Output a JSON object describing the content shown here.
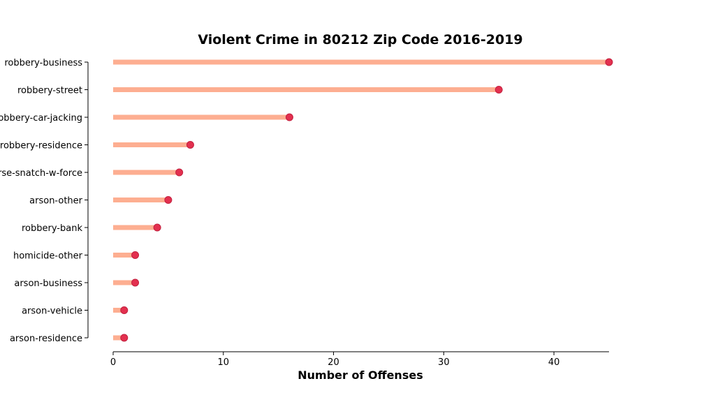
{
  "chart_data": {
    "type": "lollipop",
    "title": "Violent Crime in 80212 Zip Code 2016-2019",
    "xlabel": "Number of Offenses",
    "ylabel": "",
    "xlim": [
      0,
      45
    ],
    "xticks": [
      0,
      10,
      20,
      30,
      40
    ],
    "categories": [
      "robbery-business",
      "robbery-street",
      "robbery-car-jacking",
      "robbery-residence",
      "purse-snatch-w-force",
      "arson-other",
      "robbery-bank",
      "homicide-other",
      "arson-business",
      "arson-vehicle",
      "arson-residence"
    ],
    "values": [
      45,
      35,
      16,
      7,
      6,
      5,
      4,
      2,
      2,
      1,
      1
    ],
    "grid": false,
    "colors": {
      "stem": "#fdae91",
      "dot": "#e3304f",
      "dot_edge": "#c2203e"
    }
  }
}
